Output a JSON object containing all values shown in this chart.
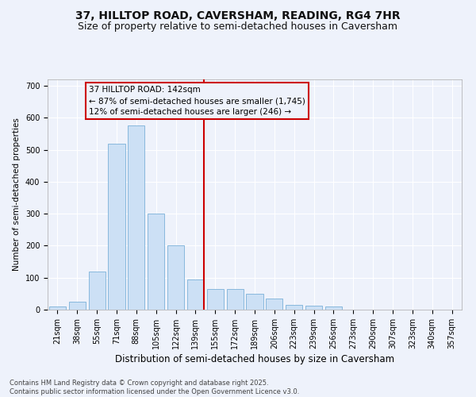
{
  "title": "37, HILLTOP ROAD, CAVERSHAM, READING, RG4 7HR",
  "subtitle": "Size of property relative to semi-detached houses in Caversham",
  "xlabel": "Distribution of semi-detached houses by size in Caversham",
  "ylabel": "Number of semi-detached properties",
  "categories": [
    "21sqm",
    "38sqm",
    "55sqm",
    "71sqm",
    "88sqm",
    "105sqm",
    "122sqm",
    "139sqm",
    "155sqm",
    "172sqm",
    "189sqm",
    "206sqm",
    "223sqm",
    "239sqm",
    "256sqm",
    "273sqm",
    "290sqm",
    "307sqm",
    "323sqm",
    "340sqm",
    "357sqm"
  ],
  "values": [
    10,
    25,
    120,
    520,
    575,
    300,
    200,
    95,
    65,
    65,
    50,
    35,
    15,
    12,
    10,
    0,
    0,
    0,
    0,
    0,
    0
  ],
  "bar_color": "#cce0f5",
  "bar_edge_color": "#7ab0d8",
  "vline_x_index": 7,
  "vline_color": "#cc0000",
  "annotation_title": "37 HILLTOP ROAD: 142sqm",
  "annotation_line1": "← 87% of semi-detached houses are smaller (1,745)",
  "annotation_line2": "12% of semi-detached houses are larger (246) →",
  "annotation_box_color": "#cc0000",
  "ylim": [
    0,
    720
  ],
  "yticks": [
    0,
    100,
    200,
    300,
    400,
    500,
    600,
    700
  ],
  "background_color": "#eef2fb",
  "grid_color": "#ffffff",
  "footer_line1": "Contains HM Land Registry data © Crown copyright and database right 2025.",
  "footer_line2": "Contains public sector information licensed under the Open Government Licence v3.0.",
  "title_fontsize": 10,
  "subtitle_fontsize": 9,
  "xlabel_fontsize": 8.5,
  "ylabel_fontsize": 7.5,
  "tick_fontsize": 7,
  "annot_fontsize": 7.5,
  "footer_fontsize": 6
}
